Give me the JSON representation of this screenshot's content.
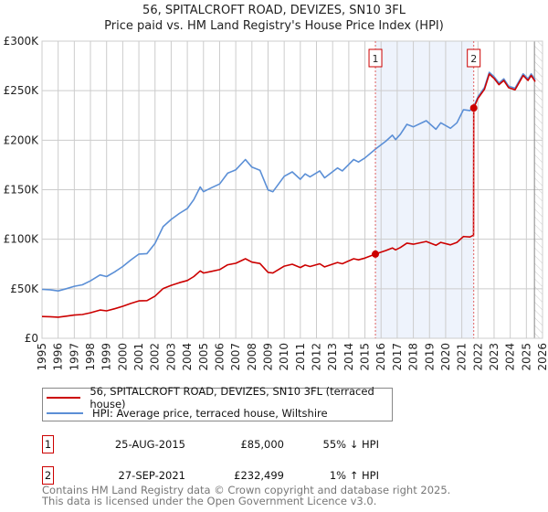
{
  "chart_data": {
    "type": "line",
    "title": "56, SPITALCROFT ROAD, DEVIZES, SN10 3FL",
    "subtitle": "Price paid vs. HM Land Registry's House Price Index (HPI)",
    "xlabel": "",
    "ylabel": "",
    "xlim": [
      1995,
      2026
    ],
    "ylim": [
      0,
      300000
    ],
    "grid": true,
    "legend_placement": "below",
    "y_ticks": [
      {
        "value": 0,
        "label": "£0"
      },
      {
        "value": 50000,
        "label": "£50K"
      },
      {
        "value": 100000,
        "label": "£100K"
      },
      {
        "value": 150000,
        "label": "£150K"
      },
      {
        "value": 200000,
        "label": "£200K"
      },
      {
        "value": 250000,
        "label": "£250K"
      },
      {
        "value": 300000,
        "label": "£300K"
      }
    ],
    "x_ticks": [
      "1995",
      "1996",
      "1997",
      "1998",
      "1999",
      "2000",
      "2001",
      "2002",
      "2003",
      "2004",
      "2005",
      "2006",
      "2007",
      "2008",
      "2009",
      "2010",
      "2011",
      "2012",
      "2013",
      "2014",
      "2015",
      "2016",
      "2017",
      "2018",
      "2019",
      "2020",
      "2021",
      "2022",
      "2023",
      "2024",
      "2025",
      "2026"
    ],
    "shaded_range": [
      2015.65,
      2021.74
    ],
    "forecast_hatch_from": 2025.5,
    "series": [
      {
        "name": "56, SPITALCROFT ROAD, DEVIZES, SN10 3FL (terraced house)",
        "color": "#cc0000",
        "x": [
          1995.0,
          1995.5,
          1996.0,
          1996.5,
          1997.0,
          1997.5,
          1998.0,
          1998.6,
          1999.0,
          1999.5,
          2000.0,
          2000.5,
          2001.0,
          2001.5,
          2002.0,
          2002.5,
          2003.0,
          2003.5,
          2004.0,
          2004.4,
          2004.8,
          2005.0,
          2005.5,
          2006.0,
          2006.5,
          2007.0,
          2007.6,
          2008.0,
          2008.5,
          2009.0,
          2009.3,
          2010.0,
          2010.5,
          2011.0,
          2011.3,
          2011.6,
          2012.2,
          2012.5,
          2013.3,
          2013.6,
          2014.3,
          2014.6,
          2015.0,
          2015.65,
          2016.3,
          2016.7,
          2016.9,
          2017.2,
          2017.6,
          2018.0,
          2018.8,
          2019.4,
          2019.7,
          2020.3,
          2020.7,
          2021.1,
          2021.5,
          2021.73,
          2021.74,
          2022.0,
          2022.4,
          2022.7,
          2023.0,
          2023.3,
          2023.6,
          2023.9,
          2024.3,
          2024.8,
          2025.1,
          2025.3,
          2025.55
        ],
        "values": [
          22000,
          21800,
          21300,
          22300,
          23400,
          24000,
          25800,
          28500,
          27700,
          29800,
          32300,
          35200,
          37800,
          38000,
          42600,
          50200,
          53400,
          56100,
          58300,
          62300,
          68000,
          65900,
          67600,
          69300,
          74200,
          75700,
          80300,
          76900,
          75500,
          66600,
          65900,
          72800,
          74800,
          71400,
          73900,
          72500,
          75200,
          72100,
          76500,
          75200,
          80300,
          79200,
          81000,
          85000,
          88600,
          91200,
          89300,
          91700,
          96100,
          95000,
          97800,
          93900,
          96800,
          94300,
          96800,
          102700,
          102300,
          104100,
          232499,
          242200,
          251400,
          266800,
          262300,
          256100,
          260300,
          253000,
          250900,
          265300,
          260300,
          265300,
          259100
        ]
      },
      {
        "name": "HPI: Average price, terraced house, Wiltshire",
        "color": "#5b8fd6",
        "x": [
          1995.0,
          1995.5,
          1996.0,
          1996.5,
          1997.0,
          1997.5,
          1998.0,
          1998.6,
          1999.0,
          1999.5,
          2000.0,
          2000.5,
          2001.0,
          2001.5,
          2002.0,
          2002.5,
          2003.0,
          2003.5,
          2004.0,
          2004.4,
          2004.8,
          2005.0,
          2005.5,
          2006.0,
          2006.5,
          2007.0,
          2007.6,
          2008.0,
          2008.5,
          2009.0,
          2009.3,
          2010.0,
          2010.5,
          2011.0,
          2011.3,
          2011.6,
          2012.2,
          2012.5,
          2013.3,
          2013.6,
          2014.3,
          2014.6,
          2015.0,
          2015.65,
          2016.3,
          2016.7,
          2016.9,
          2017.2,
          2017.6,
          2018.0,
          2018.8,
          2019.4,
          2019.7,
          2020.3,
          2020.7,
          2021.1,
          2021.5,
          2021.74,
          2022.0,
          2022.4,
          2022.7,
          2023.0,
          2023.3,
          2023.6,
          2023.9,
          2024.3,
          2024.8,
          2025.1,
          2025.3,
          2025.55
        ],
        "values": [
          49400,
          49000,
          47800,
          50000,
          52500,
          54000,
          58000,
          64000,
          62300,
          67000,
          72500,
          79000,
          85000,
          85500,
          95700,
          112700,
          120000,
          126000,
          131000,
          140000,
          152800,
          148000,
          152000,
          155800,
          166700,
          170000,
          180500,
          172800,
          169700,
          149700,
          148000,
          163600,
          168000,
          160500,
          166000,
          163000,
          169000,
          162000,
          172000,
          169000,
          180500,
          178000,
          182000,
          191000,
          199000,
          205000,
          200600,
          206000,
          216000,
          213500,
          219700,
          211000,
          217600,
          212000,
          217600,
          230800,
          229900,
          234000,
          243800,
          253000,
          268500,
          264000,
          257700,
          262000,
          254600,
          252500,
          267000,
          262000,
          267000,
          260800
        ]
      }
    ],
    "sales": [
      {
        "label": "1",
        "year": 2015.65,
        "date": "25-AUG-2015",
        "price": 85000,
        "price_text": "£85,000",
        "hpi_text": "55% ↓ HPI"
      },
      {
        "label": "2",
        "year": 2021.74,
        "date": "27-SEP-2021",
        "price": 232499,
        "price_text": "£232,499",
        "hpi_text": "1% ↑ HPI"
      }
    ]
  },
  "legend": {
    "red_label": "56, SPITALCROFT ROAD, DEVIZES, SN10 3FL (terraced house)",
    "blue_label": "HPI: Average price, terraced house, Wiltshire"
  },
  "footer": {
    "line1": "Contains HM Land Registry data © Crown copyright and database right 2025.",
    "line2": "This data is licensed under the Open Government Licence v3.0."
  }
}
